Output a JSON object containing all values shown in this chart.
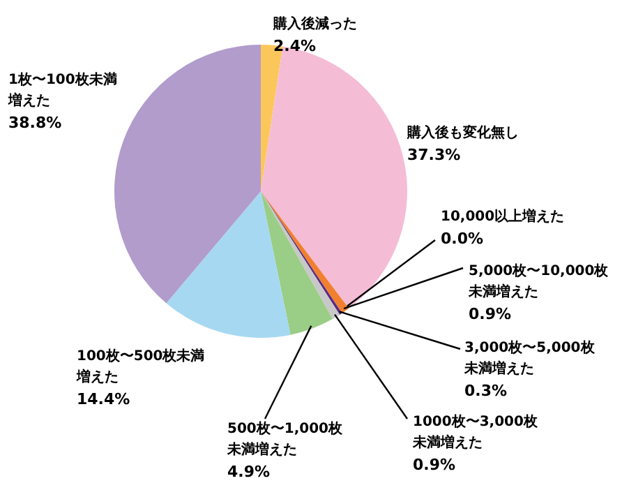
{
  "chart_data": {
    "type": "pie",
    "categories": [
      "購入後減った",
      "購入後も変化無し",
      "10,000以上増えた",
      "5,000枚〜10,000枚未満増えた",
      "3,000枚〜5,000枚未満増えた",
      "1000枚〜3,000枚未満増えた",
      "500枚〜1,000枚未満増えた",
      "100枚〜500枚未満増えた",
      "1枚〜100枚未満増えた"
    ],
    "values": [
      2.4,
      37.3,
      0.0,
      0.9,
      0.3,
      0.9,
      4.9,
      14.4,
      38.8
    ],
    "colors": [
      "#fcc75a",
      "#f5bcd6",
      "#d63a2a",
      "#f08030",
      "#5a2a80",
      "#c8c8c8",
      "#9acd85",
      "#a6d8f2",
      "#b19ccc"
    ],
    "value_labels": [
      "2.4%",
      "37.3%",
      "0.0%",
      "0.9%",
      "0.3%",
      "0.9%",
      "4.9%",
      "14.4%",
      "38.8%"
    ]
  }
}
